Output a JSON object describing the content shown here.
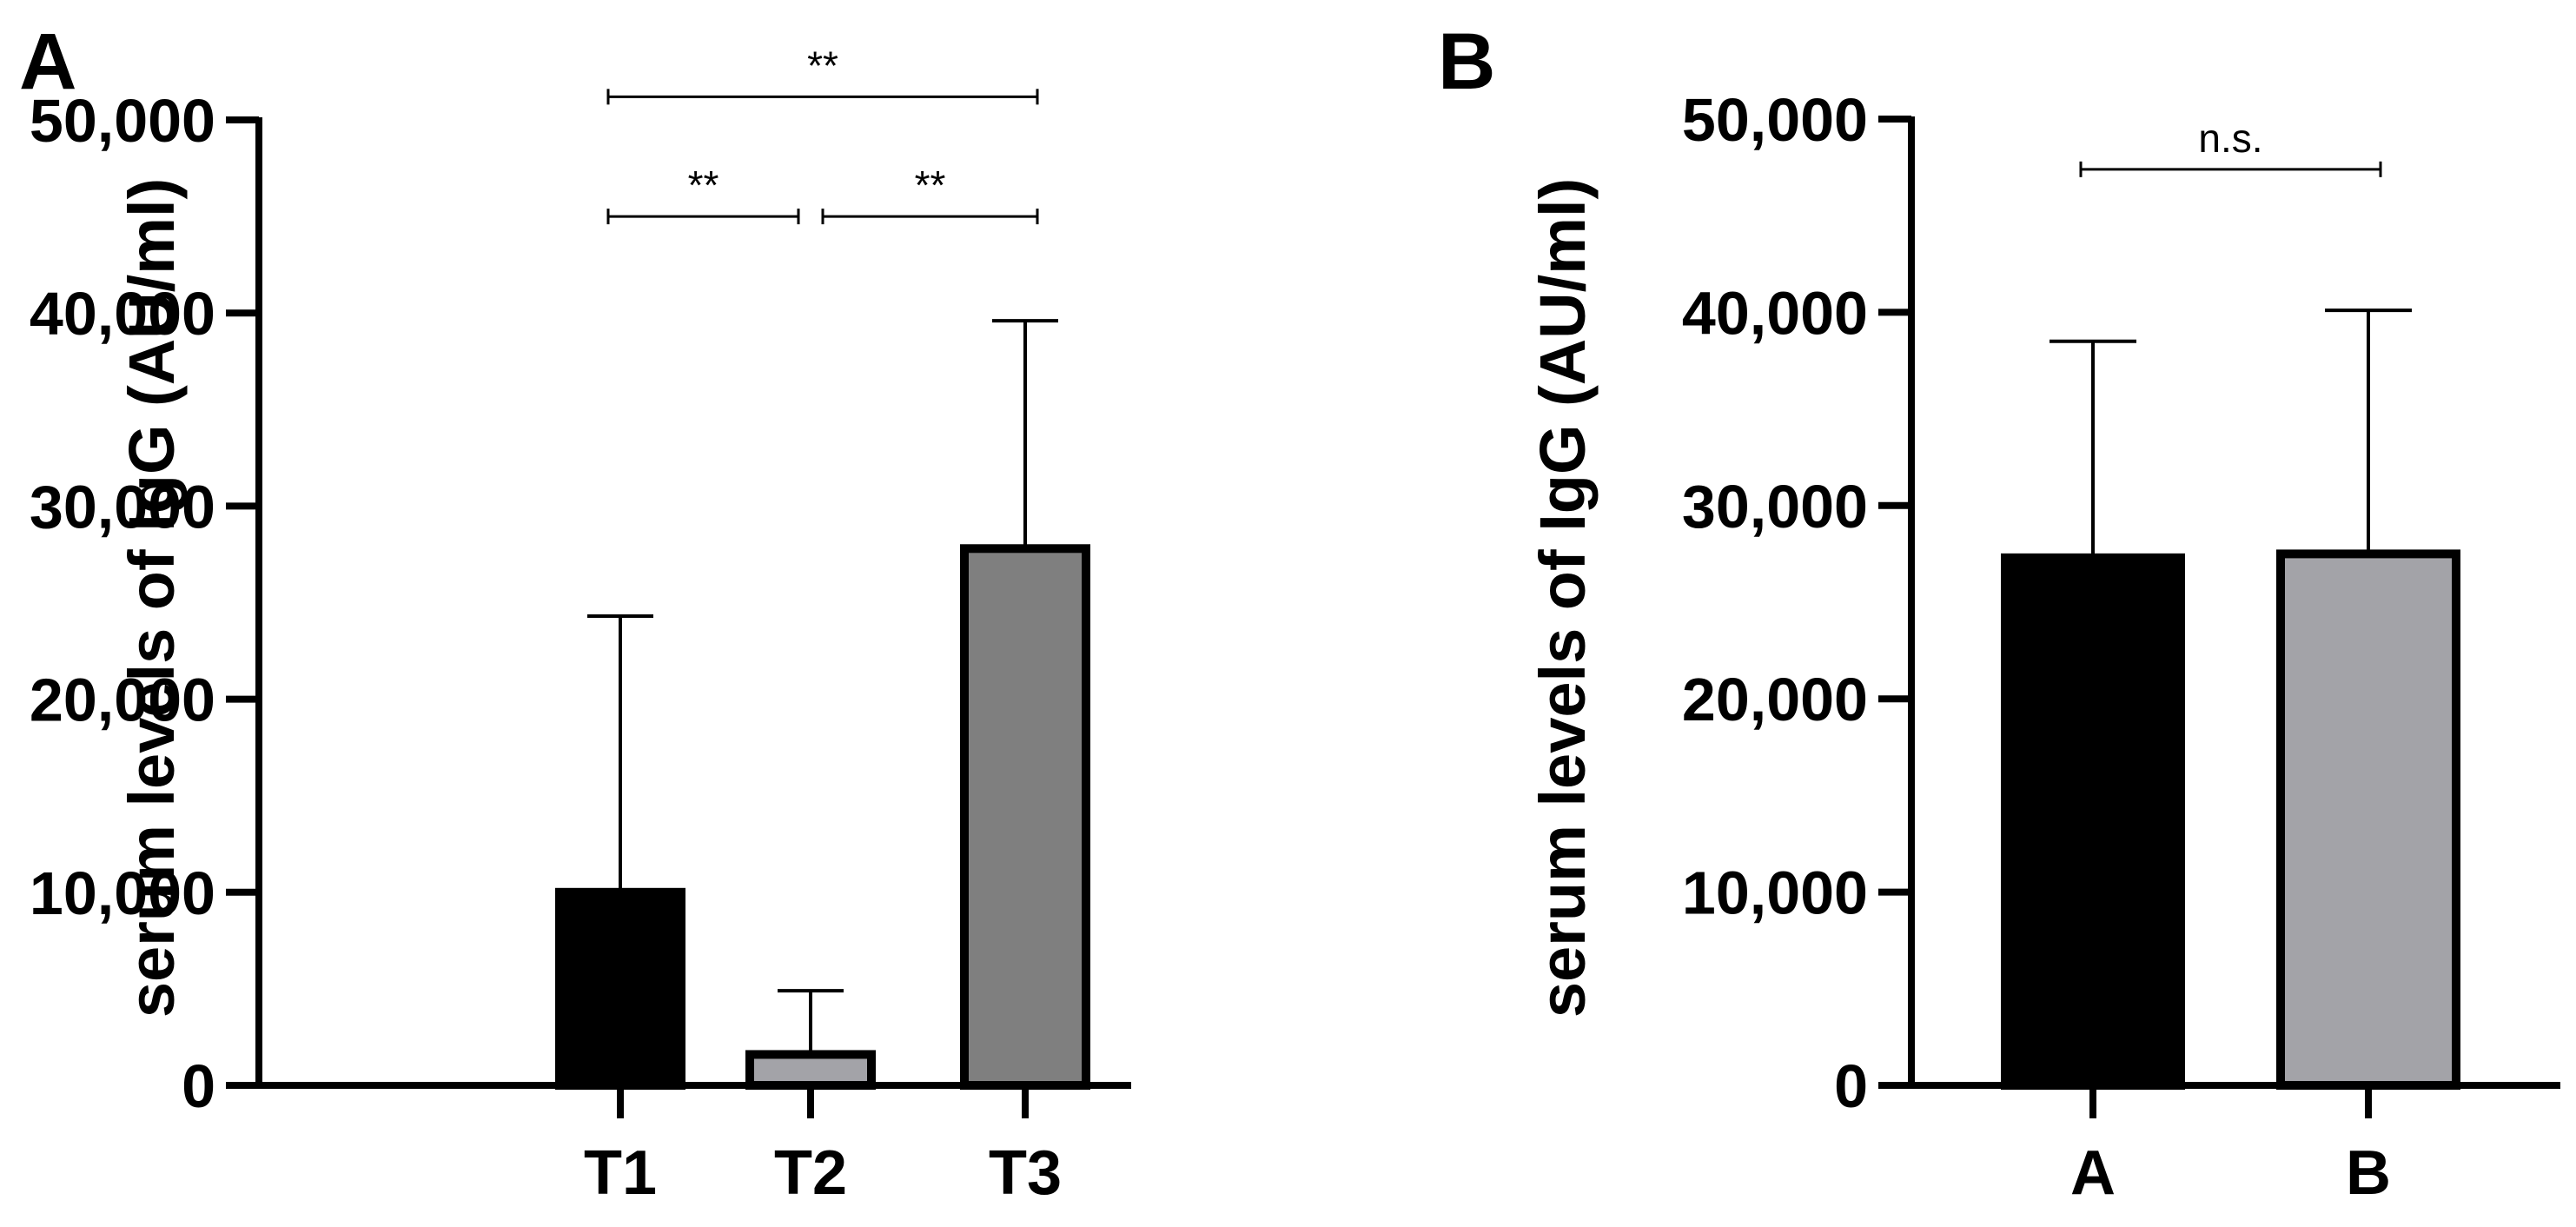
{
  "chart_data": [
    {
      "panel": "A",
      "type": "bar",
      "ylabel": "serum levels of IgG (AU/ml)",
      "xlabel": "",
      "ylim": [
        0,
        50000
      ],
      "yticks": [
        0,
        10000,
        20000,
        30000,
        40000,
        50000
      ],
      "ytick_labels": [
        "0",
        "10,000",
        "20,000",
        "30,000",
        "40,000",
        "50,000"
      ],
      "categories": [
        "T1",
        "T2",
        "T3"
      ],
      "values": [
        10000,
        1600,
        27800
      ],
      "error_upper": [
        24300,
        4900,
        39600
      ],
      "colors": [
        "#000000",
        "#a3a3a8",
        "#7f7f7f"
      ],
      "significance": [
        {
          "from": 0,
          "to": 2,
          "label": "**",
          "y": 51200
        },
        {
          "from": 0,
          "to": 1,
          "label": "**",
          "y": 45000
        },
        {
          "from": 1,
          "to": 2,
          "label": "**",
          "y": 45000
        }
      ]
    },
    {
      "panel": "B",
      "type": "bar",
      "ylabel": "serum levels of IgG (AU/ml)",
      "xlabel": "",
      "ylim": [
        0,
        50000
      ],
      "yticks": [
        0,
        10000,
        20000,
        30000,
        40000,
        50000
      ],
      "ytick_labels": [
        "0",
        "10,000",
        "20,000",
        "30,000",
        "40,000",
        "50,000"
      ],
      "categories": [
        "A",
        "B"
      ],
      "values": [
        27300,
        27500
      ],
      "error_upper": [
        38500,
        40100
      ],
      "colors": [
        "#000000",
        "#a3a3a8"
      ],
      "significance": [
        {
          "from": 0,
          "to": 1,
          "label": "n.s.",
          "y": 47400
        }
      ]
    }
  ]
}
